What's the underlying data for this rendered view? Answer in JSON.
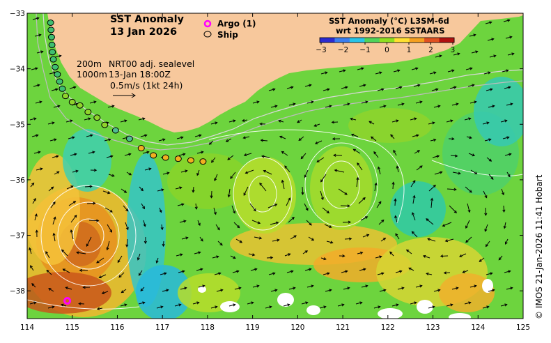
{
  "title": {
    "line1": "SST Anomaly",
    "line2": "13 Jan 2026"
  },
  "legend": {
    "argo_label": "Argo (1)",
    "ship_label": "Ship",
    "argo_color": "#ff00ff",
    "ship_color": "#000000"
  },
  "colorbar": {
    "title_line1": "SST Anomaly (°C) L3SM-6d",
    "title_line2": "wrt 1992-2016 SSTAARS",
    "ticks": [
      "−3",
      "−2",
      "−1",
      "0",
      "1",
      "2",
      "3"
    ],
    "colors": [
      "#2a2ad0",
      "#3a7df0",
      "#27c4e8",
      "#4fd35a",
      "#8fe020",
      "#ffe030",
      "#f5a020",
      "#e05020",
      "#b01010"
    ]
  },
  "annotations": {
    "depth_200": "200m",
    "depth_1000": "1000m",
    "sealevel_label": "NRT00 adj. sealevel",
    "datetime": "13-Jan 18:00Z",
    "velocity_scale": "0.5m/s (1kt 24h)"
  },
  "axes": {
    "x_ticks": [
      "114",
      "115",
      "116",
      "117",
      "118",
      "119",
      "120",
      "121",
      "122",
      "123",
      "124",
      "125"
    ],
    "y_ticks": [
      "−33",
      "−34",
      "−35",
      "−36",
      "−37",
      "−38"
    ],
    "lon_range": [
      114,
      125
    ],
    "lat_range": [
      -38.5,
      -33
    ]
  },
  "credit": "© IMOS 21-Jan-2026 11:41 Hobart",
  "land_color": "#f7c89c",
  "ship_track": [
    [
      114.52,
      -33.17
    ],
    [
      114.53,
      -33.3
    ],
    [
      114.54,
      -33.43
    ],
    [
      114.55,
      -33.57
    ],
    [
      114.56,
      -33.7
    ],
    [
      114.58,
      -33.83
    ],
    [
      114.62,
      -33.97
    ],
    [
      114.67,
      -34.1
    ],
    [
      114.72,
      -34.23
    ],
    [
      114.78,
      -34.36
    ],
    [
      114.85,
      -34.49
    ],
    [
      115.0,
      -34.6
    ],
    [
      115.17,
      -34.66
    ],
    [
      115.35,
      -34.78
    ],
    [
      115.55,
      -34.88
    ],
    [
      115.72,
      -35.01
    ],
    [
      115.96,
      -35.11
    ],
    [
      116.27,
      -35.26
    ],
    [
      116.53,
      -35.43
    ],
    [
      116.8,
      -35.56
    ],
    [
      117.07,
      -35.6
    ],
    [
      117.35,
      -35.62
    ],
    [
      117.63,
      -35.65
    ],
    [
      117.9,
      -35.67
    ]
  ],
  "argo_floats": [
    [
      114.89,
      -38.18
    ]
  ]
}
